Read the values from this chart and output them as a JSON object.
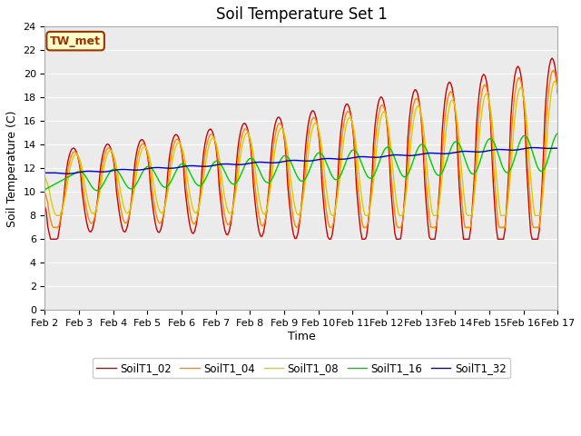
{
  "title": "Soil Temperature Set 1",
  "xlabel": "Time",
  "ylabel": "Soil Temperature (C)",
  "xlim": [
    0,
    15
  ],
  "ylim": [
    0,
    24
  ],
  "yticks": [
    0,
    2,
    4,
    6,
    8,
    10,
    12,
    14,
    16,
    18,
    20,
    22,
    24
  ],
  "xtick_labels": [
    "Feb 2",
    "Feb 3",
    "Feb 4",
    "Feb 5",
    "Feb 6",
    "Feb 7",
    "Feb 8",
    "Feb 9",
    "Feb 10",
    "Feb 11",
    "Feb 12",
    "Feb 13",
    "Feb 14",
    "Feb 15",
    "Feb 16",
    "Feb 17"
  ],
  "legend_labels": [
    "SoilT1_02",
    "SoilT1_04",
    "SoilT1_08",
    "SoilT1_16",
    "SoilT1_32"
  ],
  "colors": [
    "#cc0000",
    "#ff8800",
    "#ddcc00",
    "#00cc00",
    "#0000bb"
  ],
  "annotation_text": "TW_met",
  "annotation_bg": "#ffffcc",
  "annotation_border": "#993300",
  "plot_bg": "#ebebeb",
  "fig_bg": "#ffffff",
  "grid_color": "#ffffff",
  "title_fontsize": 12,
  "label_fontsize": 9,
  "tick_fontsize": 8
}
